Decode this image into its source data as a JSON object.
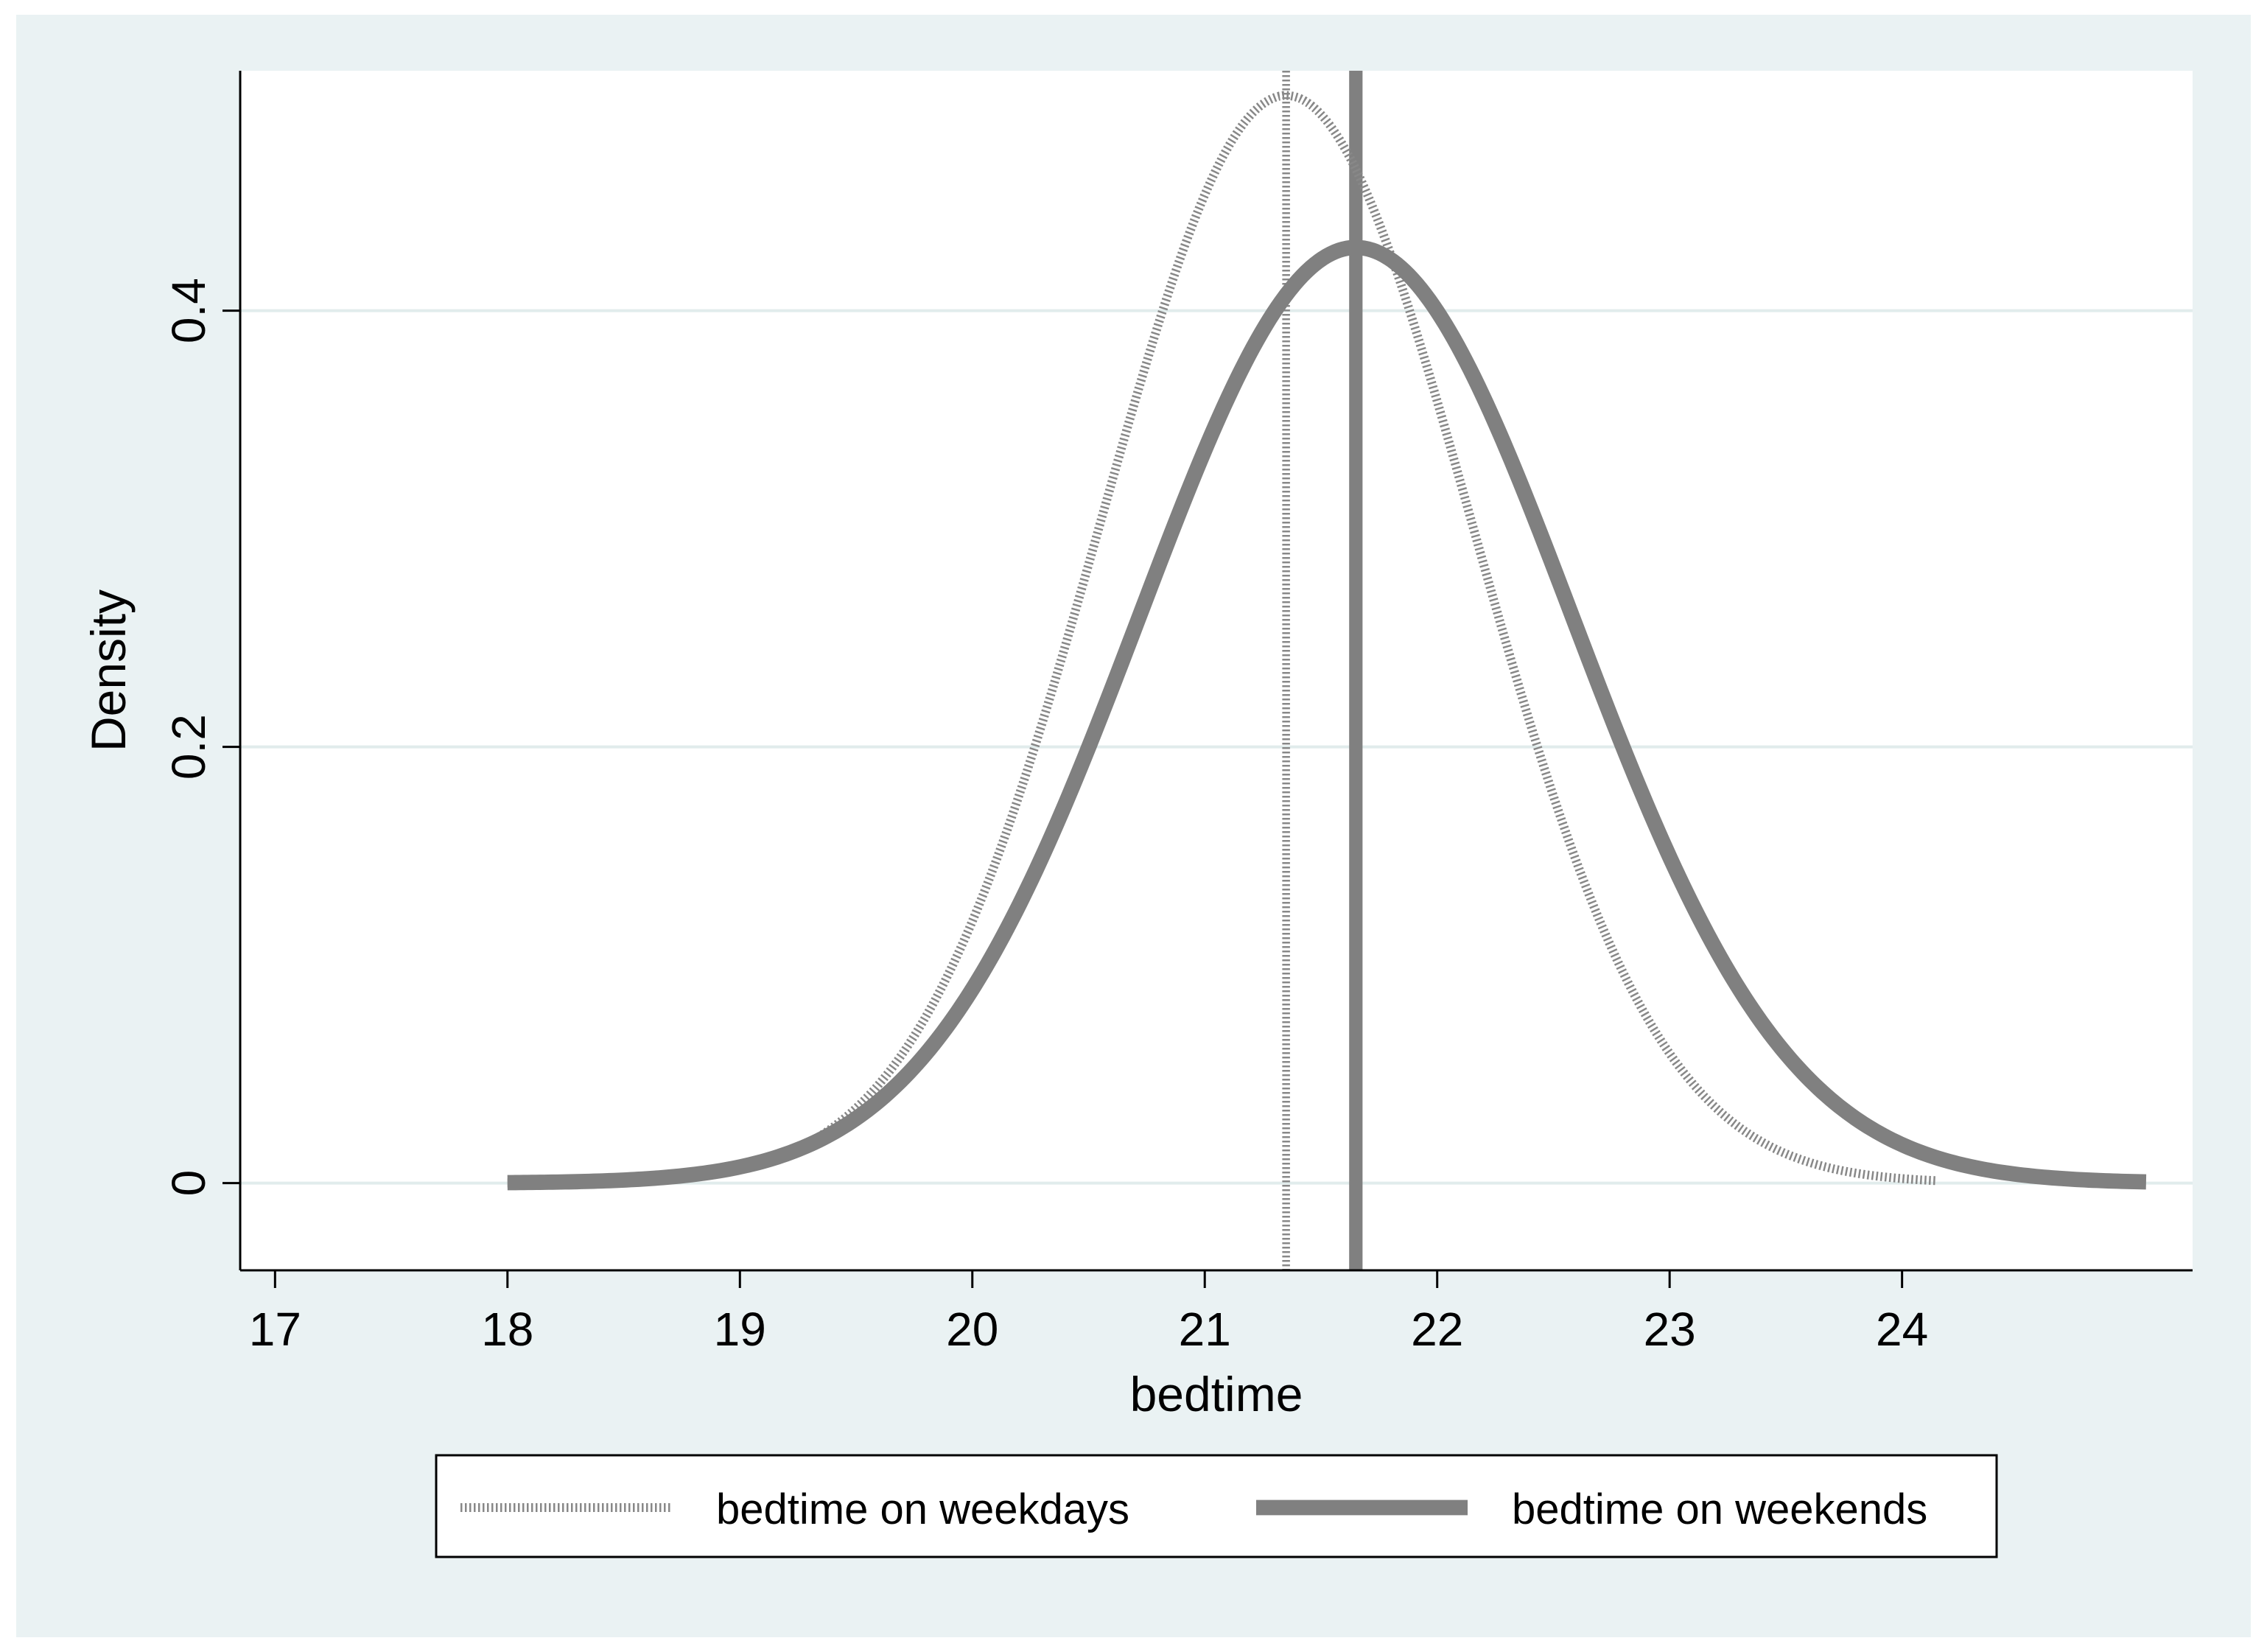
{
  "chart_data": {
    "type": "line",
    "title": "",
    "xlabel": "bedtime",
    "ylabel": "Density",
    "xlim": [
      16.85,
      25.25
    ],
    "ylim": [
      -0.04,
      0.51
    ],
    "x_ticks": [
      17,
      18,
      19,
      20,
      21,
      22,
      23,
      24
    ],
    "y_ticks": [
      0,
      0.2,
      0.4
    ],
    "y_tick_labels": [
      "0",
      "0.2",
      "0.4"
    ],
    "grid": "horizontal",
    "legend_position": "bottom",
    "series": [
      {
        "name": "bedtime on weekdays",
        "style": "dotted",
        "color": "#888888",
        "distribution": "normal",
        "mean": 21.35,
        "sd": 0.8,
        "x_range": [
          18.0,
          24.15
        ],
        "mean_line_x": 21.35
      },
      {
        "name": "bedtime on weekends",
        "style": "solid",
        "color": "#808080",
        "distribution": "normal",
        "mean": 21.65,
        "sd": 0.93,
        "x_range": [
          18.0,
          25.05
        ],
        "mean_line_x": 21.65
      }
    ]
  },
  "colors": {
    "outer_background": "#eaf2f3",
    "plot_background": "#ffffff",
    "grid": "#e1ecec",
    "axis": "#000000"
  }
}
